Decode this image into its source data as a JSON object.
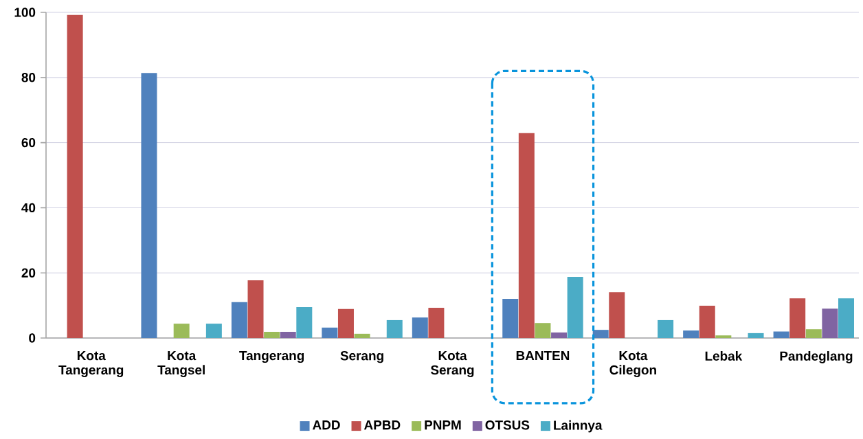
{
  "chart_data": {
    "type": "bar",
    "categories": [
      "Kota Tangerang",
      "Kota Tangsel",
      "Tangerang",
      "Serang",
      "Kota Serang",
      "BANTEN",
      "Kota Cilegon",
      "Lebak",
      "Pandeglang"
    ],
    "series": [
      {
        "name": "ADD",
        "color": "#4f81bd",
        "values": [
          null,
          81.4,
          11.0,
          3.2,
          6.3,
          12.0,
          2.5,
          2.3,
          2.0
        ]
      },
      {
        "name": "APBD",
        "color": "#c0504d",
        "values": [
          99.2,
          null,
          17.7,
          8.9,
          9.3,
          62.9,
          14.1,
          9.9,
          12.2
        ]
      },
      {
        "name": "PNPM",
        "color": "#9bbb59",
        "values": [
          null,
          4.4,
          1.9,
          1.3,
          null,
          4.6,
          null,
          0.8,
          2.7
        ]
      },
      {
        "name": "OTSUS",
        "color": "#8064a2",
        "values": [
          null,
          null,
          1.9,
          null,
          null,
          1.7,
          null,
          null,
          9.0
        ]
      },
      {
        "name": "Lainnya",
        "color": "#4bacc6",
        "values": [
          null,
          4.4,
          9.5,
          5.5,
          null,
          18.8,
          5.5,
          1.5,
          12.2
        ]
      }
    ],
    "ylim": [
      0,
      100
    ],
    "yticks": [
      0,
      20,
      40,
      60,
      80,
      100
    ],
    "grid": "y",
    "legend": "bottom"
  }
}
